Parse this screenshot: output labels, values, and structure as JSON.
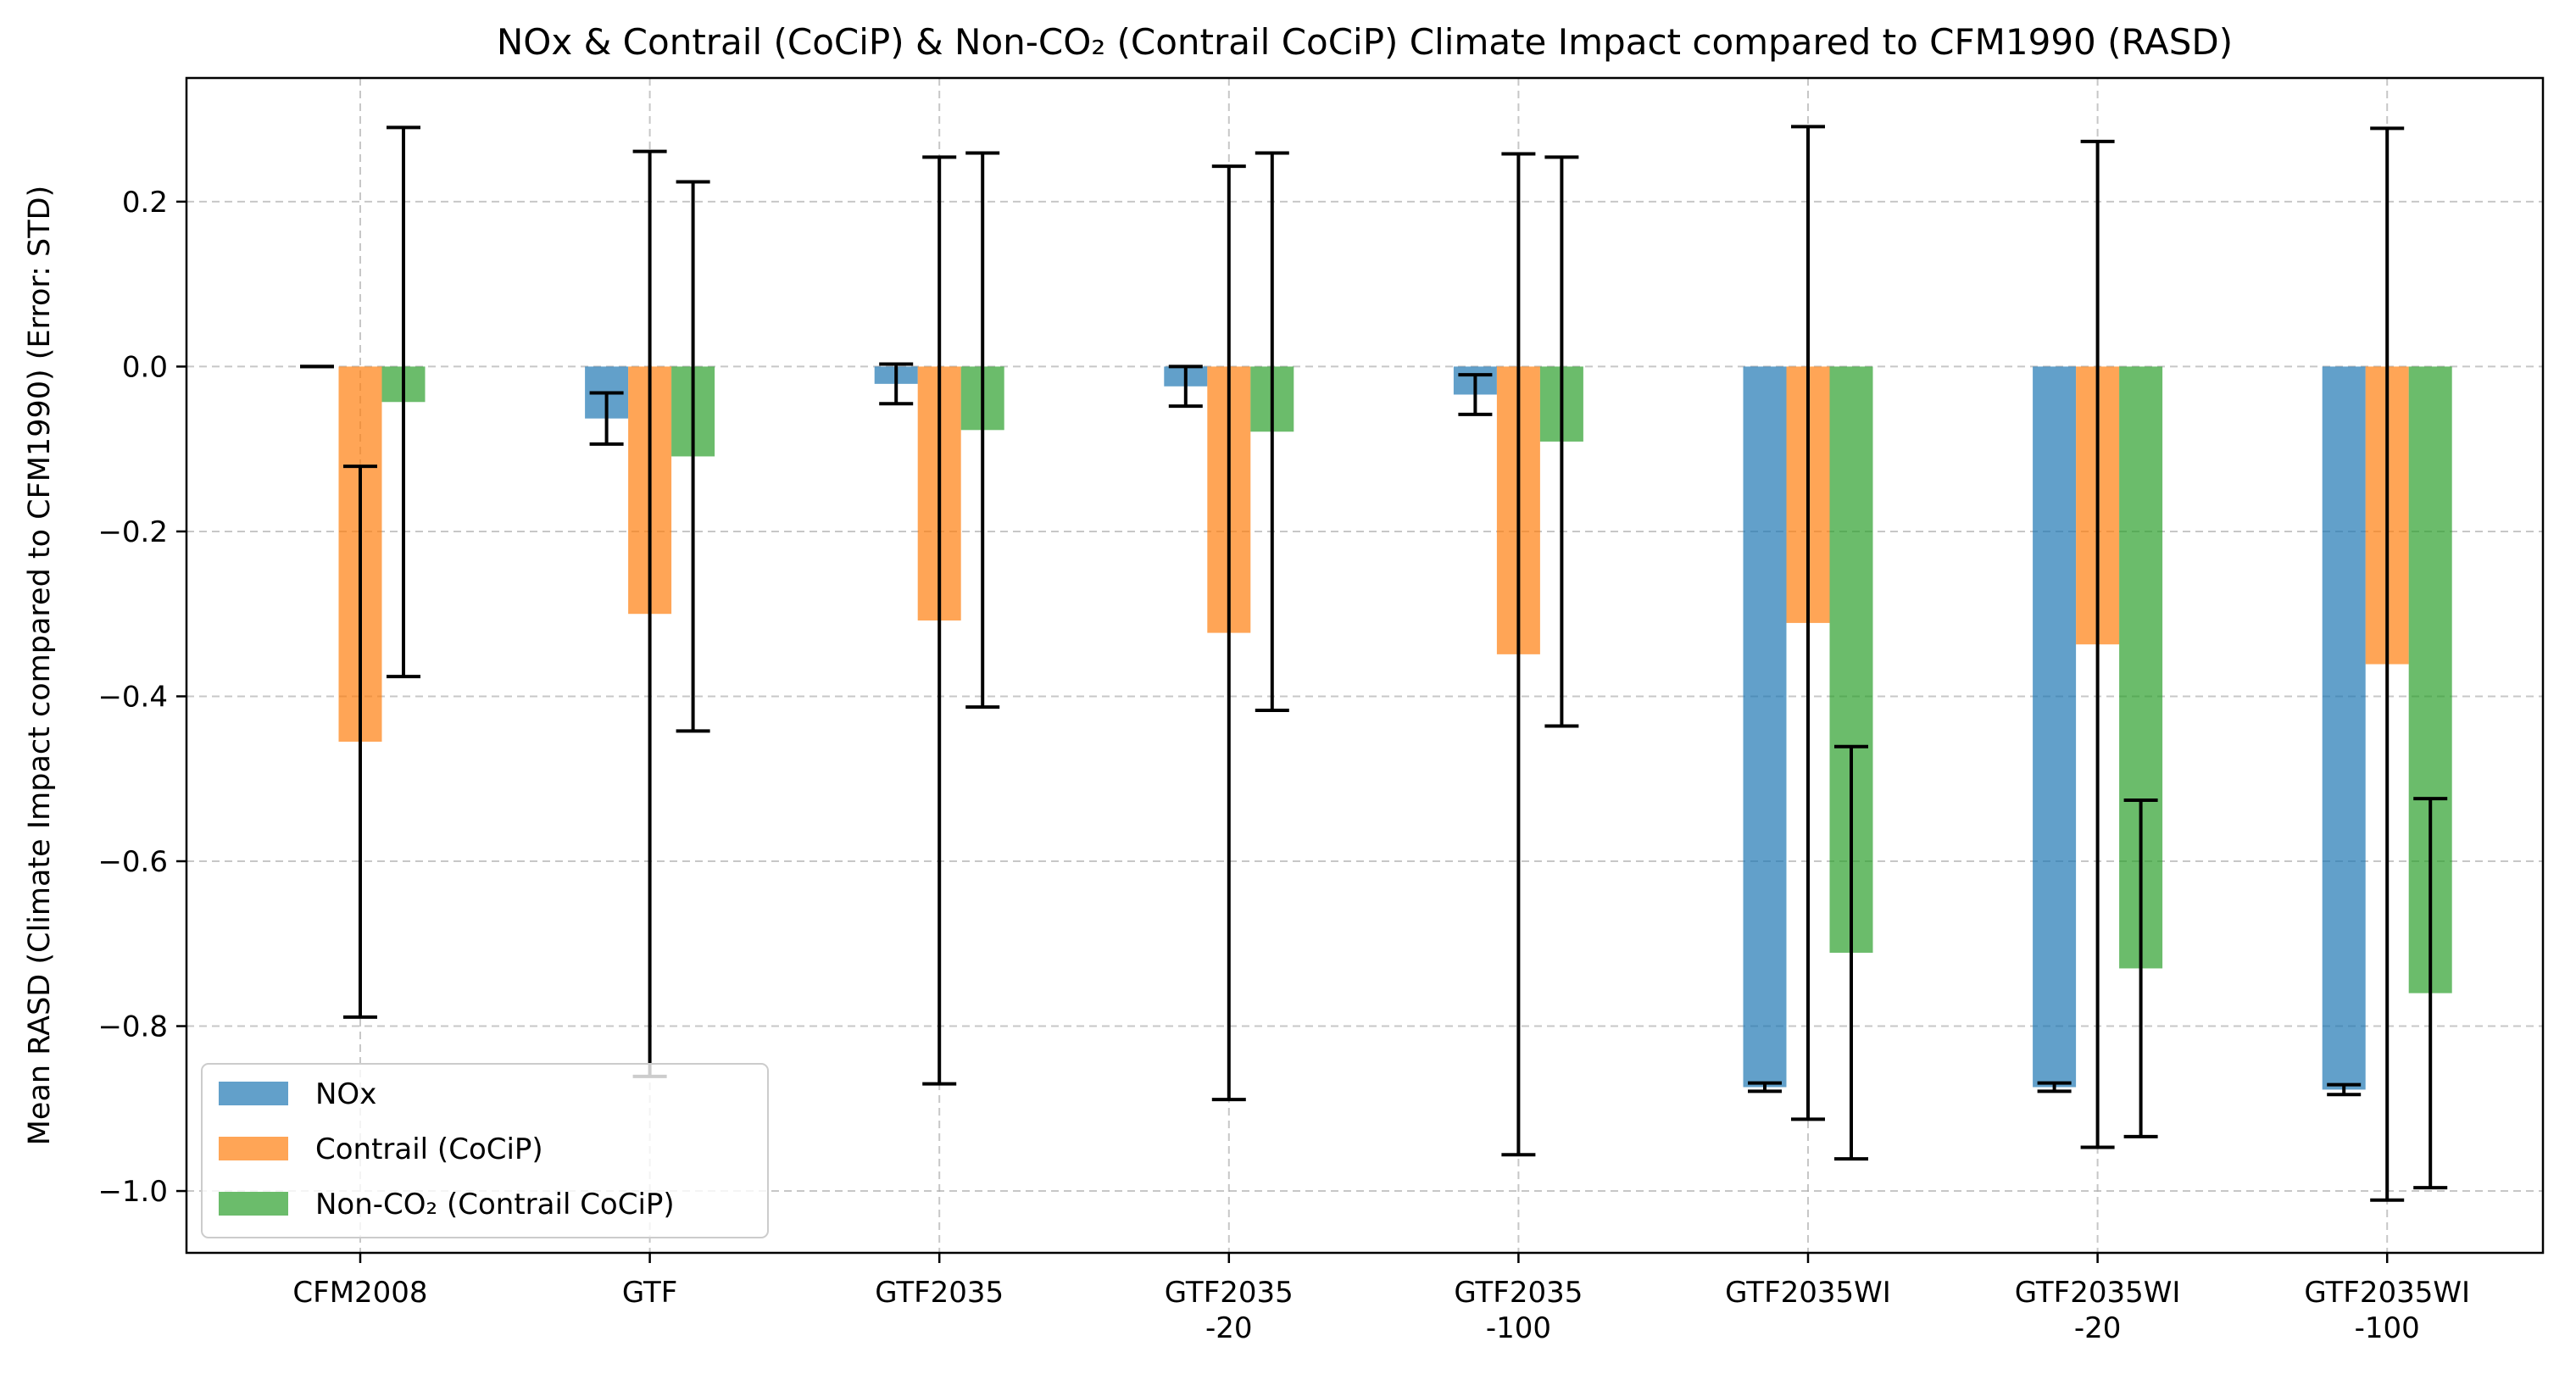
{
  "chart_data": {
    "type": "bar",
    "title": "NOx & Contrail (CoCiP) & Non-CO₂ (Contrail CoCiP) Climate Impact compared to CFM1990 (RASD)",
    "xlabel": "",
    "ylabel": "Mean RASD (Climate Impact compared to CFM1990) (Error: STD)",
    "ylim": [
      -1.075,
      0.35
    ],
    "yticks": [
      0.2,
      0.0,
      -0.2,
      -0.4,
      -0.6,
      -0.8,
      -1.0
    ],
    "ytick_labels": [
      "0.2",
      "0.0",
      "−0.2",
      "−0.4",
      "−0.6",
      "−0.8",
      "−1.0"
    ],
    "grid": true,
    "legend_position": "lower-left",
    "categories": [
      [
        "CFM2008"
      ],
      [
        "GTF"
      ],
      [
        "GTF2035"
      ],
      [
        "GTF2035",
        "-20"
      ],
      [
        "GTF2035",
        "-100"
      ],
      [
        "GTF2035WI"
      ],
      [
        "GTF2035WI",
        "-20"
      ],
      [
        "GTF2035WI",
        "-100"
      ]
    ],
    "series": [
      {
        "name": "NOx",
        "color": "#1f77b4",
        "values": [
          0.0,
          -0.063,
          -0.021,
          -0.024,
          -0.034,
          -0.874,
          -0.874,
          -0.877
        ],
        "errors": [
          0.0,
          0.031,
          0.024,
          0.024,
          0.024,
          0.005,
          0.005,
          0.006
        ]
      },
      {
        "name": "Contrail (CoCiP)",
        "color": "#ff7f0e",
        "values": [
          -0.455,
          -0.3,
          -0.308,
          -0.323,
          -0.349,
          -0.311,
          -0.337,
          -0.361
        ],
        "errors": [
          0.334,
          0.561,
          0.562,
          0.566,
          0.607,
          0.602,
          0.61,
          0.65
        ]
      },
      {
        "name": "Non-CO₂ (Contrail CoCiP)",
        "color": "#2ca02c",
        "values": [
          -0.043,
          -0.109,
          -0.077,
          -0.079,
          -0.091,
          -0.711,
          -0.73,
          -0.76
        ],
        "errors": [
          0.333,
          0.333,
          0.336,
          0.338,
          0.345,
          0.25,
          0.204,
          0.236
        ]
      }
    ]
  }
}
